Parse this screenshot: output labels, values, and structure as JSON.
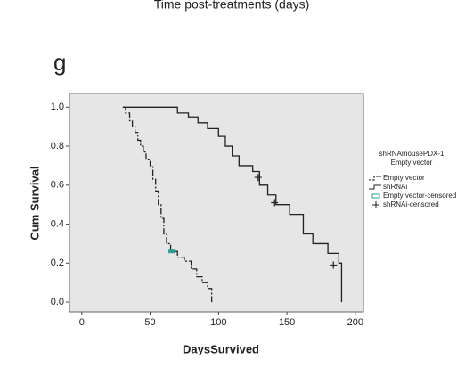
{
  "chart_data": {
    "type": "step",
    "title": "Time post-treatments (days)",
    "panel_label": "g",
    "x_label": "DaysSurvived",
    "y_label": "Cum Survival",
    "legend_title": [
      "shRNAmousePDX-1",
      "Empty vector"
    ],
    "xlim": [
      -9,
      206
    ],
    "ylim": [
      -0.05,
      1.07
    ],
    "xticks": [
      0,
      50,
      100,
      150,
      200
    ],
    "yticks": [
      {
        "value": 0,
        "label": "0.0"
      },
      0.2,
      0.4,
      0.6,
      0.8,
      {
        "value": 1,
        "label": "1.0"
      }
    ],
    "series": [
      {
        "name": "Empty vector",
        "color": "#222222",
        "dash": "7,2,2,2",
        "x": [
          30,
          32,
          35,
          37,
          39,
          41,
          43,
          45,
          47,
          50,
          52,
          54,
          56,
          58,
          60,
          62,
          65,
          70,
          75,
          80,
          84,
          88,
          92,
          95
        ],
        "values": [
          1.0,
          0.97,
          0.93,
          0.9,
          0.87,
          0.83,
          0.8,
          0.77,
          0.73,
          0.7,
          0.63,
          0.57,
          0.5,
          0.43,
          0.35,
          0.3,
          0.26,
          0.23,
          0.21,
          0.17,
          0.13,
          0.1,
          0.07,
          0.0
        ]
      },
      {
        "name": "shRNAi",
        "color": "#222222",
        "x": [
          30,
          70,
          78,
          85,
          92,
          100,
          105,
          110,
          115,
          125,
          130,
          136,
          142,
          152,
          162,
          169,
          180,
          188,
          190
        ],
        "values": [
          1.0,
          0.97,
          0.95,
          0.92,
          0.89,
          0.85,
          0.8,
          0.75,
          0.7,
          0.67,
          0.6,
          0.55,
          0.5,
          0.45,
          0.35,
          0.3,
          0.25,
          0.2,
          0.0
        ]
      },
      {
        "name": "Empty vector-censored",
        "color": "#2a9d8f",
        "marker": "rect",
        "x": [
          66
        ],
        "values": [
          0.26
        ]
      },
      {
        "name": "shRNAi-censored",
        "color": "#222222",
        "marker": "plus",
        "x": [
          129,
          141,
          184
        ],
        "values": [
          0.64,
          0.51,
          0.19
        ]
      }
    ]
  }
}
